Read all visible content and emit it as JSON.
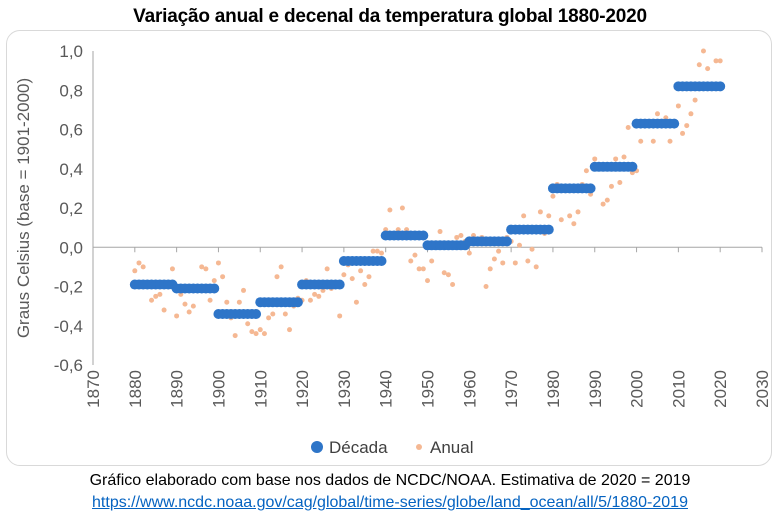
{
  "caption": "Gráfico elaborado com base nos dados de NCDC/NOAA. Estimativa de 2020 = 2019",
  "source_url": "https://www.ncdc.noaa.gov/cag/global/time-series/globe/land_ocean/all/5/1880-2019",
  "colors": {
    "decade": "#2e75c8",
    "annual": "#f5b893",
    "axis": "#a6a6a6",
    "zero_line": "#a6a6a6"
  },
  "chart_data": {
    "type": "scatter",
    "title": "Variação anual e decenal da temperatura global 1880-2020",
    "ylabel": "Graus Celsius (base = 1901-2000)",
    "xlabel": "",
    "xlim": [
      1870,
      2030
    ],
    "ylim": [
      -0.6,
      1.0
    ],
    "x_ticks": [
      1870,
      1880,
      1890,
      1900,
      1910,
      1920,
      1930,
      1940,
      1950,
      1960,
      1970,
      1980,
      1990,
      2000,
      2010,
      2020,
      2030
    ],
    "y_ticks": [
      -0.6,
      -0.4,
      -0.2,
      0.0,
      0.2,
      0.4,
      0.6,
      0.8,
      1.0
    ],
    "y_tick_labels": [
      "-0,6",
      "-0,4",
      "-0,2",
      "0,0",
      "0,2",
      "0,4",
      "0,6",
      "0,8",
      "1,0"
    ],
    "grid": false,
    "legend_position": "bottom",
    "series": [
      {
        "name": "Década",
        "marker": "circle-large",
        "x": [
          1880,
          1881,
          1882,
          1883,
          1884,
          1885,
          1886,
          1887,
          1888,
          1889,
          1890,
          1891,
          1892,
          1893,
          1894,
          1895,
          1896,
          1897,
          1898,
          1899,
          1900,
          1901,
          1902,
          1903,
          1904,
          1905,
          1906,
          1907,
          1908,
          1909,
          1910,
          1911,
          1912,
          1913,
          1914,
          1915,
          1916,
          1917,
          1918,
          1919,
          1920,
          1921,
          1922,
          1923,
          1924,
          1925,
          1926,
          1927,
          1928,
          1929,
          1930,
          1931,
          1932,
          1933,
          1934,
          1935,
          1936,
          1937,
          1938,
          1939,
          1940,
          1941,
          1942,
          1943,
          1944,
          1945,
          1946,
          1947,
          1948,
          1949,
          1950,
          1951,
          1952,
          1953,
          1954,
          1955,
          1956,
          1957,
          1958,
          1959,
          1960,
          1961,
          1962,
          1963,
          1964,
          1965,
          1966,
          1967,
          1968,
          1969,
          1970,
          1971,
          1972,
          1973,
          1974,
          1975,
          1976,
          1977,
          1978,
          1979,
          1980,
          1981,
          1982,
          1983,
          1984,
          1985,
          1986,
          1987,
          1988,
          1989,
          1990,
          1991,
          1992,
          1993,
          1994,
          1995,
          1996,
          1997,
          1998,
          1999,
          2000,
          2001,
          2002,
          2003,
          2004,
          2005,
          2006,
          2007,
          2008,
          2009,
          2010,
          2011,
          2012,
          2013,
          2014,
          2015,
          2016,
          2017,
          2018,
          2019,
          2020
        ],
        "y": [
          -0.19,
          -0.19,
          -0.19,
          -0.19,
          -0.19,
          -0.19,
          -0.19,
          -0.19,
          -0.19,
          -0.19,
          -0.21,
          -0.21,
          -0.21,
          -0.21,
          -0.21,
          -0.21,
          -0.21,
          -0.21,
          -0.21,
          -0.21,
          -0.34,
          -0.34,
          -0.34,
          -0.34,
          -0.34,
          -0.34,
          -0.34,
          -0.34,
          -0.34,
          -0.34,
          -0.28,
          -0.28,
          -0.28,
          -0.28,
          -0.28,
          -0.28,
          -0.28,
          -0.28,
          -0.28,
          -0.28,
          -0.19,
          -0.19,
          -0.19,
          -0.19,
          -0.19,
          -0.19,
          -0.19,
          -0.19,
          -0.19,
          -0.19,
          -0.07,
          -0.07,
          -0.07,
          -0.07,
          -0.07,
          -0.07,
          -0.07,
          -0.07,
          -0.07,
          -0.07,
          0.06,
          0.06,
          0.06,
          0.06,
          0.06,
          0.06,
          0.06,
          0.06,
          0.06,
          0.06,
          0.01,
          0.01,
          0.01,
          0.01,
          0.01,
          0.01,
          0.01,
          0.01,
          0.01,
          0.01,
          0.03,
          0.03,
          0.03,
          0.03,
          0.03,
          0.03,
          0.03,
          0.03,
          0.03,
          0.03,
          0.09,
          0.09,
          0.09,
          0.09,
          0.09,
          0.09,
          0.09,
          0.09,
          0.09,
          0.09,
          0.3,
          0.3,
          0.3,
          0.3,
          0.3,
          0.3,
          0.3,
          0.3,
          0.3,
          0.3,
          0.41,
          0.41,
          0.41,
          0.41,
          0.41,
          0.41,
          0.41,
          0.41,
          0.41,
          0.41,
          0.63,
          0.63,
          0.63,
          0.63,
          0.63,
          0.63,
          0.63,
          0.63,
          0.63,
          0.63,
          0.82,
          0.82,
          0.82,
          0.82,
          0.82,
          0.82,
          0.82,
          0.82,
          0.82,
          0.82,
          0.82
        ]
      },
      {
        "name": "Anual",
        "marker": "circle-small",
        "x": [
          1880,
          1881,
          1882,
          1883,
          1884,
          1885,
          1886,
          1887,
          1888,
          1889,
          1890,
          1891,
          1892,
          1893,
          1894,
          1895,
          1896,
          1897,
          1898,
          1899,
          1900,
          1901,
          1902,
          1903,
          1904,
          1905,
          1906,
          1907,
          1908,
          1909,
          1910,
          1911,
          1912,
          1913,
          1914,
          1915,
          1916,
          1917,
          1918,
          1919,
          1920,
          1921,
          1922,
          1923,
          1924,
          1925,
          1926,
          1927,
          1928,
          1929,
          1930,
          1931,
          1932,
          1933,
          1934,
          1935,
          1936,
          1937,
          1938,
          1939,
          1940,
          1941,
          1942,
          1943,
          1944,
          1945,
          1946,
          1947,
          1948,
          1949,
          1950,
          1951,
          1952,
          1953,
          1954,
          1955,
          1956,
          1957,
          1958,
          1959,
          1960,
          1961,
          1962,
          1963,
          1964,
          1965,
          1966,
          1967,
          1968,
          1969,
          1970,
          1971,
          1972,
          1973,
          1974,
          1975,
          1976,
          1977,
          1978,
          1979,
          1980,
          1981,
          1982,
          1983,
          1984,
          1985,
          1986,
          1987,
          1988,
          1989,
          1990,
          1991,
          1992,
          1993,
          1994,
          1995,
          1996,
          1997,
          1998,
          1999,
          2000,
          2001,
          2002,
          2003,
          2004,
          2005,
          2006,
          2007,
          2008,
          2009,
          2010,
          2011,
          2012,
          2013,
          2014,
          2015,
          2016,
          2017,
          2018,
          2019,
          2020
        ],
        "y": [
          -0.12,
          -0.08,
          -0.1,
          -0.18,
          -0.27,
          -0.25,
          -0.24,
          -0.32,
          -0.18,
          -0.11,
          -0.35,
          -0.24,
          -0.29,
          -0.33,
          -0.3,
          -0.21,
          -0.1,
          -0.11,
          -0.27,
          -0.17,
          -0.08,
          -0.15,
          -0.28,
          -0.36,
          -0.45,
          -0.28,
          -0.22,
          -0.39,
          -0.43,
          -0.44,
          -0.42,
          -0.44,
          -0.36,
          -0.34,
          -0.15,
          -0.1,
          -0.34,
          -0.42,
          -0.3,
          -0.26,
          -0.27,
          -0.17,
          -0.27,
          -0.24,
          -0.25,
          -0.22,
          -0.11,
          -0.21,
          -0.2,
          -0.35,
          -0.14,
          -0.09,
          -0.16,
          -0.28,
          -0.12,
          -0.19,
          -0.15,
          -0.02,
          -0.02,
          -0.03,
          0.09,
          0.19,
          0.07,
          0.09,
          0.2,
          0.09,
          -0.07,
          -0.04,
          -0.11,
          -0.11,
          -0.17,
          -0.07,
          0.01,
          0.08,
          -0.13,
          -0.14,
          -0.19,
          0.05,
          0.06,
          0.03,
          -0.03,
          0.06,
          0.03,
          0.05,
          -0.2,
          -0.11,
          -0.06,
          -0.02,
          -0.08,
          0.05,
          0.03,
          -0.08,
          0.01,
          0.16,
          -0.07,
          -0.01,
          -0.1,
          0.18,
          0.07,
          0.16,
          0.26,
          0.32,
          0.14,
          0.31,
          0.16,
          0.12,
          0.18,
          0.32,
          0.39,
          0.27,
          0.45,
          0.4,
          0.22,
          0.24,
          0.31,
          0.45,
          0.33,
          0.46,
          0.61,
          0.38,
          0.39,
          0.54,
          0.63,
          0.62,
          0.54,
          0.68,
          0.64,
          0.66,
          0.54,
          0.64,
          0.72,
          0.58,
          0.62,
          0.68,
          0.75,
          0.93,
          1.0,
          0.91,
          0.83,
          0.95,
          0.95
        ]
      }
    ]
  }
}
